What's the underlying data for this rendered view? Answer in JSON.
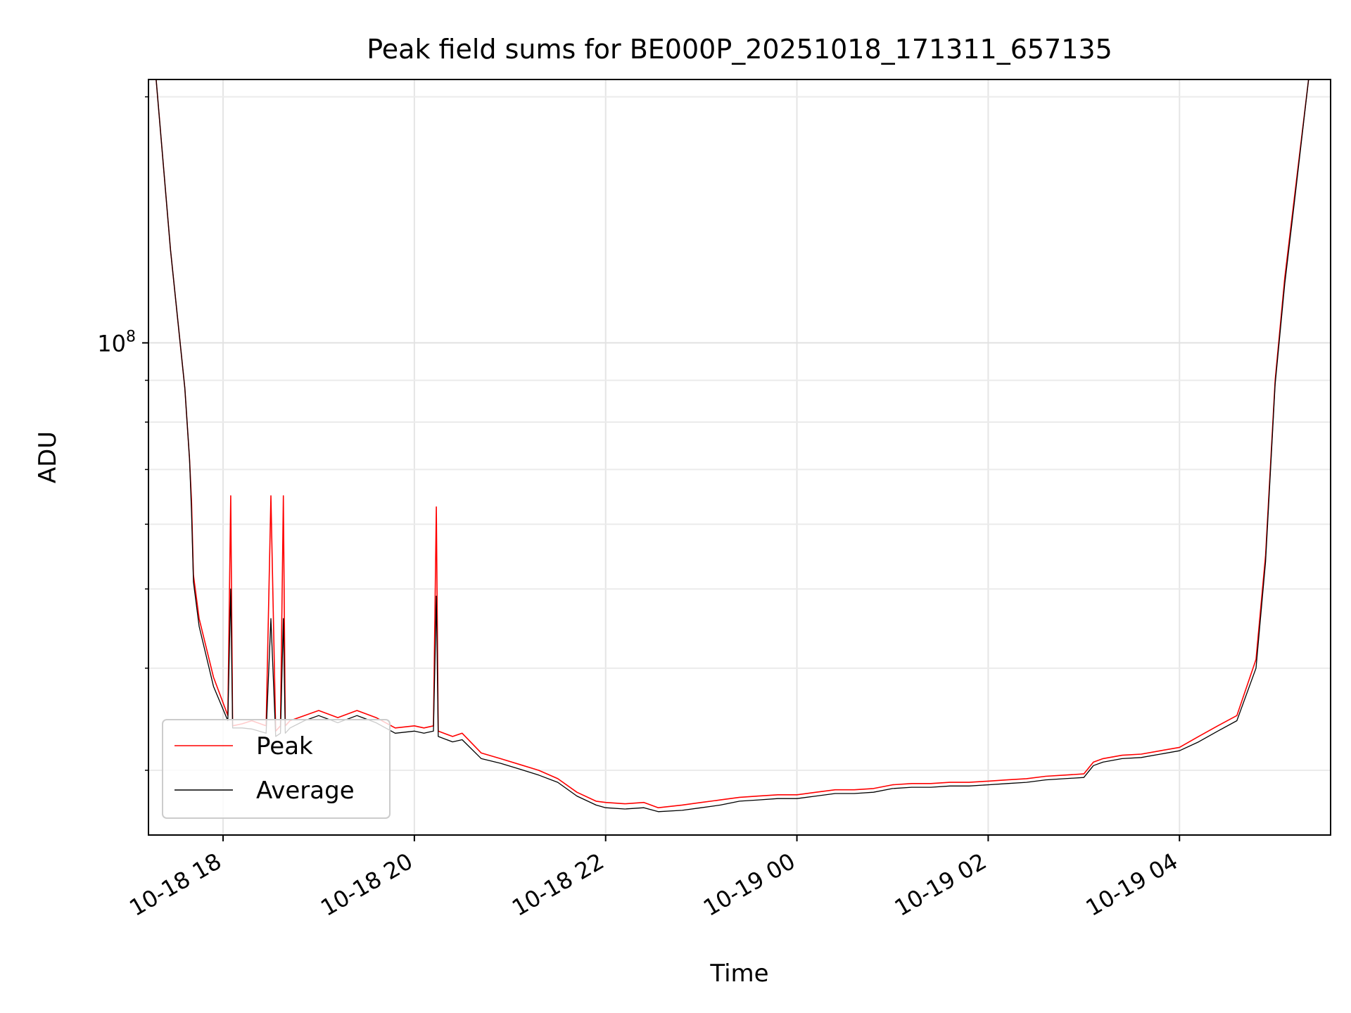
{
  "chart_data": {
    "type": "line",
    "title": "Peak field sums for BE000P_20251018_171311_657135",
    "xlabel": "Time",
    "ylabel": "ADU",
    "yscale": "log",
    "ylim": [
      25000000,
      210000000
    ],
    "xlim_hours": [
      -0.78,
      11.58
    ],
    "x_unit": "hours since 10-18 18:00",
    "x_ticks": [
      {
        "value": 0,
        "label": "10-18 18"
      },
      {
        "value": 2,
        "label": "10-18 20"
      },
      {
        "value": 4,
        "label": "10-18 22"
      },
      {
        "value": 6,
        "label": "10-19 00"
      },
      {
        "value": 8,
        "label": "10-19 02"
      },
      {
        "value": 10,
        "label": "10-19 04"
      }
    ],
    "y_ticks": [
      {
        "value": 100000000,
        "label_base": "10",
        "label_exp": "8"
      }
    ],
    "y_minor_ticks": [
      30000000,
      40000000,
      50000000,
      60000000,
      70000000,
      80000000,
      90000000,
      200000000
    ],
    "grid": true,
    "legend": {
      "position": "lower-left"
    },
    "series": [
      {
        "name": "Peak",
        "color": "#ff0000",
        "x": [
          -0.7,
          -0.55,
          -0.4,
          -0.35,
          -0.33,
          -0.31,
          -0.25,
          -0.1,
          0.05,
          0.08,
          0.1,
          0.2,
          0.3,
          0.45,
          0.5,
          0.55,
          0.6,
          0.63,
          0.65,
          0.7,
          0.85,
          1.0,
          1.2,
          1.4,
          1.6,
          1.8,
          2.0,
          2.1,
          2.2,
          2.23,
          2.25,
          2.4,
          2.5,
          2.7,
          2.9,
          3.1,
          3.3,
          3.5,
          3.7,
          3.9,
          4.0,
          4.2,
          4.4,
          4.55,
          4.8,
          5.0,
          5.2,
          5.4,
          5.6,
          5.8,
          6.0,
          6.2,
          6.4,
          6.6,
          6.8,
          7.0,
          7.2,
          7.4,
          7.6,
          7.8,
          8.0,
          8.2,
          8.4,
          8.6,
          8.8,
          9.0,
          9.1,
          9.2,
          9.4,
          9.6,
          9.8,
          10.0,
          10.2,
          10.4,
          10.6,
          10.8,
          10.9,
          11.0,
          11.1,
          11.2,
          11.35,
          11.45
        ],
        "y": [
          210000000,
          130000000,
          88000000,
          72000000,
          64000000,
          52000000,
          46000000,
          39000000,
          35000000,
          65000000,
          34000000,
          34200000,
          34500000,
          34000000,
          65000000,
          33500000,
          34000000,
          65000000,
          34000000,
          34500000,
          35000000,
          35500000,
          34800000,
          35500000,
          34800000,
          33800000,
          34000000,
          33800000,
          34000000,
          63000000,
          33500000,
          33000000,
          33300000,
          31500000,
          31000000,
          30500000,
          30000000,
          29300000,
          28200000,
          27500000,
          27400000,
          27300000,
          27400000,
          27000000,
          27200000,
          27400000,
          27600000,
          27800000,
          27900000,
          28000000,
          28000000,
          28200000,
          28400000,
          28400000,
          28500000,
          28800000,
          28900000,
          28900000,
          29000000,
          29000000,
          29100000,
          29200000,
          29300000,
          29500000,
          29600000,
          29700000,
          30700000,
          31000000,
          31300000,
          31400000,
          31700000,
          32000000,
          33000000,
          34000000,
          35000000,
          41000000,
          55000000,
          90000000,
          120000000,
          150000000,
          210000000,
          210000000
        ]
      },
      {
        "name": "Average",
        "color": "#000000",
        "x": [
          -0.7,
          -0.55,
          -0.4,
          -0.35,
          -0.33,
          -0.31,
          -0.25,
          -0.1,
          0.05,
          0.08,
          0.1,
          0.2,
          0.3,
          0.45,
          0.5,
          0.55,
          0.6,
          0.63,
          0.65,
          0.7,
          0.85,
          1.0,
          1.2,
          1.4,
          1.6,
          1.8,
          2.0,
          2.1,
          2.2,
          2.23,
          2.25,
          2.4,
          2.5,
          2.7,
          2.9,
          3.1,
          3.3,
          3.5,
          3.7,
          3.9,
          4.0,
          4.2,
          4.4,
          4.55,
          4.8,
          5.0,
          5.2,
          5.4,
          5.6,
          5.8,
          6.0,
          6.2,
          6.4,
          6.6,
          6.8,
          7.0,
          7.2,
          7.4,
          7.6,
          7.8,
          8.0,
          8.2,
          8.4,
          8.6,
          8.8,
          9.0,
          9.1,
          9.2,
          9.4,
          9.6,
          9.8,
          10.0,
          10.2,
          10.4,
          10.6,
          10.8,
          10.9,
          11.0,
          11.1,
          11.2,
          11.35,
          11.45
        ],
        "y": [
          210000000,
          130000000,
          88000000,
          72000000,
          62000000,
          51000000,
          45000000,
          38000000,
          34500000,
          50000000,
          33800000,
          33800000,
          33700000,
          33300000,
          46000000,
          33000000,
          33300000,
          46000000,
          33300000,
          33800000,
          34500000,
          35000000,
          34300000,
          35000000,
          34300000,
          33300000,
          33500000,
          33300000,
          33500000,
          49000000,
          33000000,
          32500000,
          32700000,
          31000000,
          30600000,
          30100000,
          29600000,
          29000000,
          27900000,
          27200000,
          27000000,
          26900000,
          27000000,
          26700000,
          26800000,
          27000000,
          27200000,
          27500000,
          27600000,
          27700000,
          27700000,
          27900000,
          28100000,
          28100000,
          28200000,
          28500000,
          28600000,
          28600000,
          28700000,
          28700000,
          28800000,
          28900000,
          29000000,
          29200000,
          29300000,
          29400000,
          30400000,
          30700000,
          31000000,
          31100000,
          31400000,
          31700000,
          32500000,
          33500000,
          34500000,
          40000000,
          54000000,
          89000000,
          118000000,
          148000000,
          210000000,
          210000000
        ]
      }
    ]
  }
}
